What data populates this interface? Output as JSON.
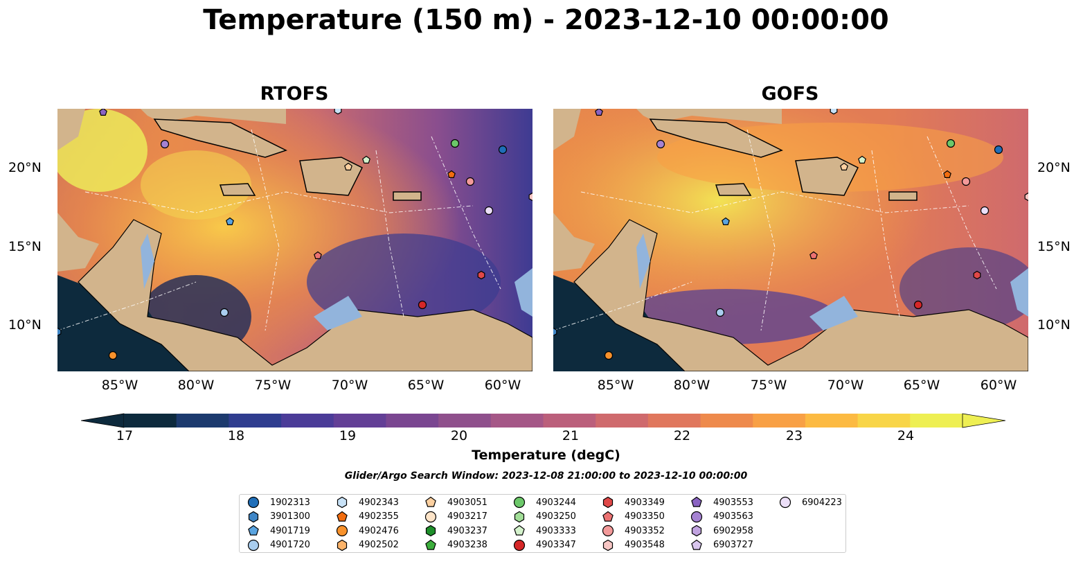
{
  "title": "Temperature (150 m) - 2023-12-10 00:00:00",
  "panels": [
    {
      "title": "RTOFS"
    },
    {
      "title": "GOFS"
    }
  ],
  "axes": {
    "lon_ticks": [
      "85°W",
      "80°W",
      "75°W",
      "70°W",
      "65°W",
      "60°W"
    ],
    "lat_ticks": [
      "20°N",
      "15°N",
      "10°N"
    ]
  },
  "colorbar": {
    "label": "Temperature (degC)",
    "ticks": [
      "17",
      "18",
      "19",
      "20",
      "21",
      "22",
      "23",
      "24"
    ],
    "colors": [
      "#0d2a3d",
      "#1c3a6e",
      "#2f3d8f",
      "#4b3c98",
      "#633f96",
      "#7a4691",
      "#8f508c",
      "#a55787",
      "#bb5f7b",
      "#cf6a6d",
      "#e0775d",
      "#ee8a4c",
      "#f8a045",
      "#fcba42",
      "#f8d548",
      "#eeef53"
    ]
  },
  "search_window": "Glider/Argo Search Window: 2023-12-08 21:00:00 to 2023-12-10 00:00:00",
  "legend": [
    {
      "id": "1902313",
      "marker": "circle",
      "color": "#1f6eb8"
    },
    {
      "id": "3901300",
      "marker": "hexagon",
      "color": "#3f86c6"
    },
    {
      "id": "4901719",
      "marker": "pentagon",
      "color": "#5aa4e0"
    },
    {
      "id": "4901720",
      "marker": "circle",
      "color": "#a9cdee"
    },
    {
      "id": "4902343",
      "marker": "hexagon",
      "color": "#c8e2f7"
    },
    {
      "id": "4902355",
      "marker": "pentagon",
      "color": "#f26d0f"
    },
    {
      "id": "4902476",
      "marker": "circle",
      "color": "#f8922c"
    },
    {
      "id": "4902502",
      "marker": "hexagon",
      "color": "#fbb36a"
    },
    {
      "id": "4903051",
      "marker": "pentagon",
      "color": "#fcd0a0"
    },
    {
      "id": "4903217",
      "marker": "circle",
      "color": "#fde4c8"
    },
    {
      "id": "4903237",
      "marker": "hexagon",
      "color": "#1e8f2a"
    },
    {
      "id": "4903238",
      "marker": "pentagon",
      "color": "#3cad3c"
    },
    {
      "id": "4903244",
      "marker": "circle",
      "color": "#6cc86a"
    },
    {
      "id": "4903250",
      "marker": "hexagon",
      "color": "#a2de98"
    },
    {
      "id": "4903333",
      "marker": "pentagon",
      "color": "#d4f2cc"
    },
    {
      "id": "4903347",
      "marker": "circle",
      "color": "#d62728"
    },
    {
      "id": "4903349",
      "marker": "hexagon",
      "color": "#e04848"
    },
    {
      "id": "4903350",
      "marker": "pentagon",
      "color": "#ec7272"
    },
    {
      "id": "4903352",
      "marker": "circle",
      "color": "#f39a9a"
    },
    {
      "id": "4903548",
      "marker": "hexagon",
      "color": "#f7c6c4"
    },
    {
      "id": "4903553",
      "marker": "pentagon",
      "color": "#8a63c2"
    },
    {
      "id": "4903563",
      "marker": "circle",
      "color": "#a582d2"
    },
    {
      "id": "6902958",
      "marker": "hexagon",
      "color": "#c1a3e0"
    },
    {
      "id": "6903727",
      "marker": "pentagon",
      "color": "#d9c6ee"
    },
    {
      "id": "6904223",
      "marker": "circle",
      "color": "#ecdff8"
    }
  ],
  "colors": {
    "land": "#d2b48c",
    "shallow_water": "#92b4dc"
  }
}
